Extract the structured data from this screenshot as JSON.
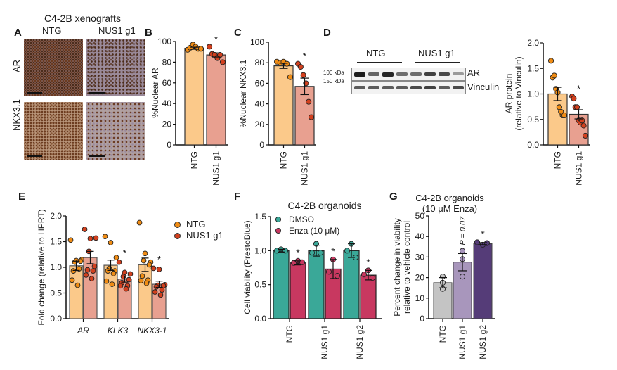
{
  "figure": {
    "panel_letters": [
      "A",
      "B",
      "C",
      "D",
      "E",
      "F",
      "G"
    ],
    "panel_a": {
      "title": "C4-2B xenografts",
      "columns": [
        "NTG",
        "NUS1 g1"
      ],
      "rows": [
        "AR",
        "NKX3.1"
      ]
    },
    "panel_d_blot": {
      "groups": [
        "NTG",
        "NUS1 g1"
      ],
      "markers": [
        "100 kDa",
        "150 kDa"
      ],
      "bands": [
        "AR",
        "Vinculin"
      ],
      "ar_intensity": [
        0.95,
        0.55,
        0.9,
        0.5,
        0.5,
        0.75,
        0.7,
        0.25
      ],
      "vinculin_intensity": [
        0.6,
        0.6,
        0.6,
        0.6,
        0.7,
        0.75,
        0.6,
        0.7
      ]
    },
    "colors": {
      "ntg_bar": "#fbc98a",
      "ntg_dot": "#f08c14",
      "nus1_bar": "#e8a090",
      "nus1_dot": "#d2401e",
      "dmso": "#3aa898",
      "enza": "#c83860",
      "g_ntg": "#c4c4c4",
      "g_g1": "#a896bc",
      "g_g2": "#553c78"
    }
  },
  "chart_data": [
    {
      "id": "B",
      "type": "bar",
      "ylabel": "%Nuclear AR",
      "ylim": [
        0,
        100
      ],
      "yticks": [
        "0",
        "20",
        "40",
        "60",
        "80",
        "100"
      ],
      "categories": [
        "NTG",
        "NUS1 g1"
      ],
      "values": [
        93.5,
        87
      ],
      "errors": [
        1,
        2
      ],
      "points": [
        [
          92,
          94,
          97,
          95,
          93,
          93
        ],
        [
          95,
          88,
          87,
          84,
          87,
          80
        ]
      ],
      "significance": [
        "",
        "*"
      ]
    },
    {
      "id": "C",
      "type": "bar",
      "ylabel": "%Nuclear NKX3.1",
      "ylim": [
        0,
        100
      ],
      "yticks": [
        "0",
        "20",
        "40",
        "60",
        "80",
        "100"
      ],
      "categories": [
        "NTG",
        "NUS1 g1"
      ],
      "values": [
        77,
        57
      ],
      "errors": [
        2.5,
        8
      ],
      "points": [
        [
          81,
          80,
          81,
          79,
          66
        ],
        [
          79,
          76,
          68,
          60,
          42,
          27
        ]
      ],
      "significance": [
        "",
        "*"
      ]
    },
    {
      "id": "D",
      "type": "bar",
      "ylabel": "AR protein",
      "ylabel2": "(relative to Vinculin)",
      "ylim": [
        0,
        2.0
      ],
      "yticks": [
        "0.0",
        "0.5",
        "1.0",
        "1.5",
        "2.0"
      ],
      "categories": [
        "NTG",
        "NUS1 g1"
      ],
      "values": [
        1.0,
        0.6
      ],
      "errors": [
        0.13,
        0.09
      ],
      "points": [
        [
          1.65,
          1.32,
          1.36,
          1.1,
          1.03,
          0.74,
          0.65,
          0.58,
          0.58
        ],
        [
          0.95,
          0.91,
          0.74,
          0.74,
          0.48,
          0.44,
          0.48,
          0.38,
          0.18
        ]
      ],
      "significance": [
        "",
        "*"
      ]
    },
    {
      "id": "E",
      "type": "bar",
      "ylabel": "Fold change (relative to HPRT)",
      "ylim": [
        0,
        2.0
      ],
      "yticks": [
        "0.0",
        "0.5",
        "1.0",
        "1.5",
        "2.0"
      ],
      "categories": [
        "AR",
        "KLK3",
        "NKX3-1"
      ],
      "legend": [
        "NTG",
        "NUS1 g1"
      ],
      "legend_position": "right",
      "series": [
        {
          "name": "NTG",
          "values": [
            1.03,
            1.04,
            1.05
          ],
          "errors": [
            0.09,
            0.1,
            0.13
          ],
          "points": [
            [
              1.53,
              1.13,
              1.15,
              1.1,
              1.12,
              0.93,
              0.97,
              0.75,
              0.65
            ],
            [
              1.6,
              1.48,
              1.19,
              0.98,
              0.93,
              0.93,
              0.88,
              0.73,
              0.67
            ],
            [
              1.87,
              1.27,
              1.1,
              1.13,
              1.05,
              0.83,
              0.75,
              0.74,
              0.69
            ]
          ]
        },
        {
          "name": "NUS1 g1",
          "values": [
            1.19,
            0.77,
            0.67
          ],
          "errors": [
            0.12,
            0.06,
            0.06
          ],
          "points": [
            [
              1.74,
              1.56,
              1.57,
              1.31,
              1.02,
              0.95,
              0.93,
              0.85,
              0.78
            ],
            [
              1.1,
              0.9,
              0.87,
              0.82,
              0.76,
              0.7,
              0.64,
              0.64,
              0.58
            ],
            [
              0.98,
              0.96,
              0.66,
              0.65,
              0.64,
              0.62,
              0.56,
              0.52,
              0.46
            ]
          ]
        }
      ],
      "significance": [
        "",
        "*",
        "*"
      ]
    },
    {
      "id": "F",
      "type": "bar",
      "title": "C4-2B organoids",
      "ylabel": "Cell viability (PrestoBlue)",
      "ylim": [
        0,
        1.5
      ],
      "yticks": [
        "0.0",
        "0.5",
        "1.0",
        "1.5"
      ],
      "categories": [
        "NTG",
        "NUS1 g1",
        "NUS1 g2"
      ],
      "legend": [
        "DMSO",
        "Enza (10 μM)"
      ],
      "legend_position": "top-left",
      "series": [
        {
          "name": "DMSO",
          "values": [
            1.0,
            1.0,
            1.0
          ],
          "errors": [
            0.02,
            0.08,
            0.1
          ],
          "points": [
            [
              1.0,
              1.02,
              1.0
            ],
            [
              1.1,
              0.97,
              0.97
            ],
            [
              1.1,
              1.0,
              0.9
            ]
          ]
        },
        {
          "name": "Enza (10 μM)",
          "values": [
            0.82,
            0.73,
            0.64
          ],
          "errors": [
            0.03,
            0.14,
            0.07
          ],
          "points": [
            [
              0.82,
              0.85,
              0.83
            ],
            [
              0.87,
              0.69,
              0.63
            ],
            [
              0.71,
              0.65,
              0.6
            ]
          ]
        }
      ],
      "significance": [
        "*",
        "*",
        "*"
      ]
    },
    {
      "id": "G",
      "type": "bar",
      "title": "C4-2B organoids",
      "subtitle": "(10 μM Enza)",
      "ylabel": "Percent change in viability",
      "ylabel2": "relative to vehicle control",
      "ylim": [
        0,
        50
      ],
      "yticks": [
        "0",
        "10",
        "20",
        "30",
        "40",
        "50"
      ],
      "categories": [
        "NTG",
        "NUS1 g1",
        "NUS1 g2"
      ],
      "values": [
        17.5,
        27.5,
        36.5
      ],
      "errors": [
        2.5,
        4.2,
        0.5
      ],
      "points": [
        [
          20.5,
          17.5,
          14.5
        ],
        [
          33,
          29,
          20.5
        ],
        [
          37.2,
          36,
          36.8
        ]
      ],
      "annotations": [
        "",
        "P = 0.07",
        "*"
      ]
    }
  ]
}
